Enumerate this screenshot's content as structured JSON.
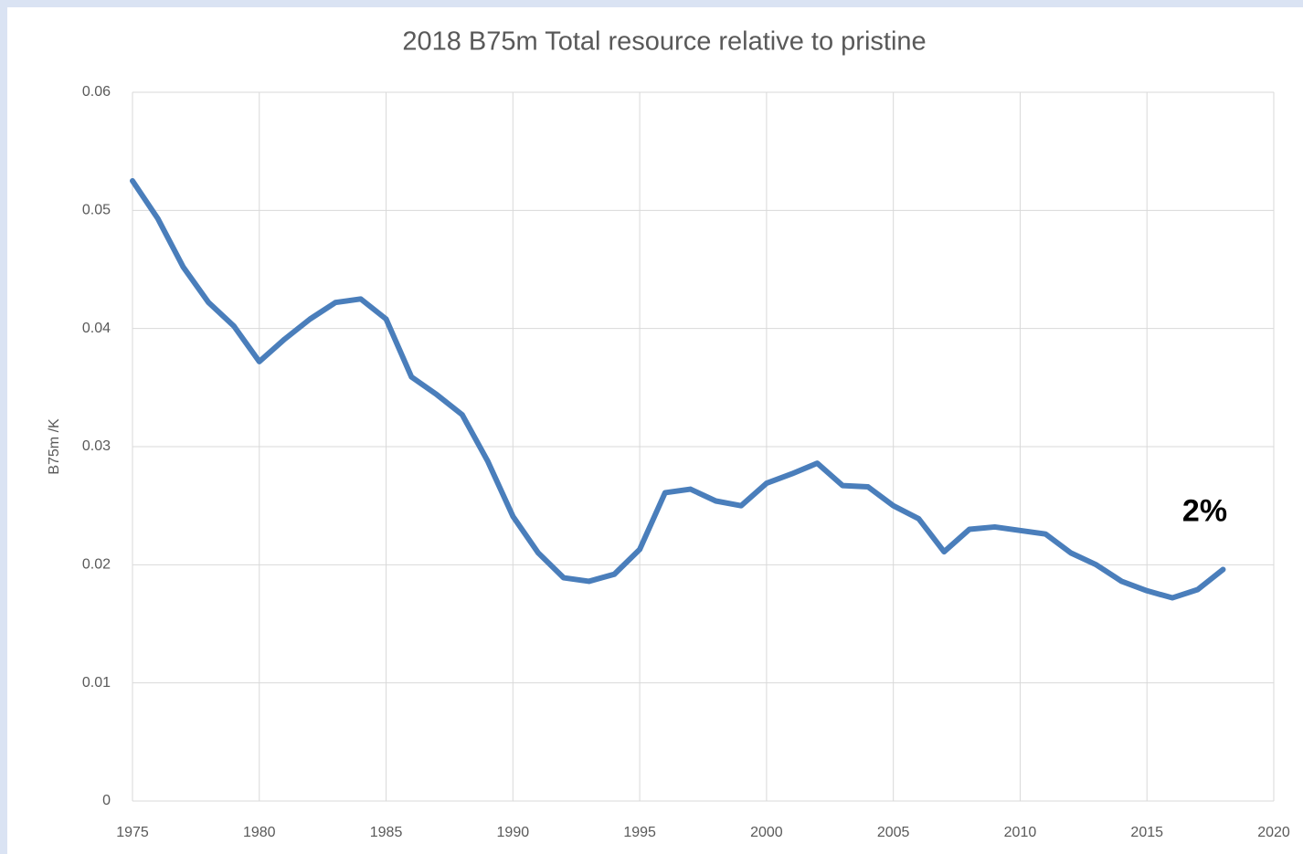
{
  "chart_data": {
    "type": "line",
    "title": "2018 B75m Total resource relative to pristine",
    "y_label": "B75m /K",
    "x": [
      1975,
      1976,
      1977,
      1978,
      1979,
      1980,
      1981,
      1982,
      1983,
      1984,
      1985,
      1986,
      1987,
      1988,
      1989,
      1990,
      1991,
      1992,
      1993,
      1994,
      1995,
      1996,
      1997,
      1998,
      1999,
      2000,
      2001,
      2002,
      2003,
      2004,
      2005,
      2006,
      2007,
      2008,
      2009,
      2010,
      2011,
      2012,
      2013,
      2014,
      2015,
      2016,
      2017,
      2018
    ],
    "values": [
      0.0525,
      0.0493,
      0.0452,
      0.0422,
      0.0402,
      0.0372,
      0.0391,
      0.0408,
      0.0422,
      0.0425,
      0.0408,
      0.0359,
      0.0344,
      0.0327,
      0.0288,
      0.0241,
      0.021,
      0.0189,
      0.0186,
      0.0192,
      0.0213,
      0.0261,
      0.0264,
      0.0254,
      0.025,
      0.0269,
      0.0277,
      0.0286,
      0.0267,
      0.0266,
      0.025,
      0.0239,
      0.0211,
      0.023,
      0.0232,
      0.0229,
      0.0226,
      0.021,
      0.02,
      0.0186,
      0.0178,
      0.0172,
      0.0179,
      0.0196
    ],
    "color": "#4a7ebb",
    "xlim": [
      1975,
      2020
    ],
    "xticks": [
      1975,
      1980,
      1985,
      1990,
      1995,
      2000,
      2005,
      2010,
      2015,
      2020
    ],
    "ylim": [
      0,
      0.06
    ],
    "yticks": [
      0,
      0.01,
      0.02,
      0.03,
      0.04,
      0.05,
      0.06
    ],
    "grid": true,
    "annotation": "2%"
  }
}
